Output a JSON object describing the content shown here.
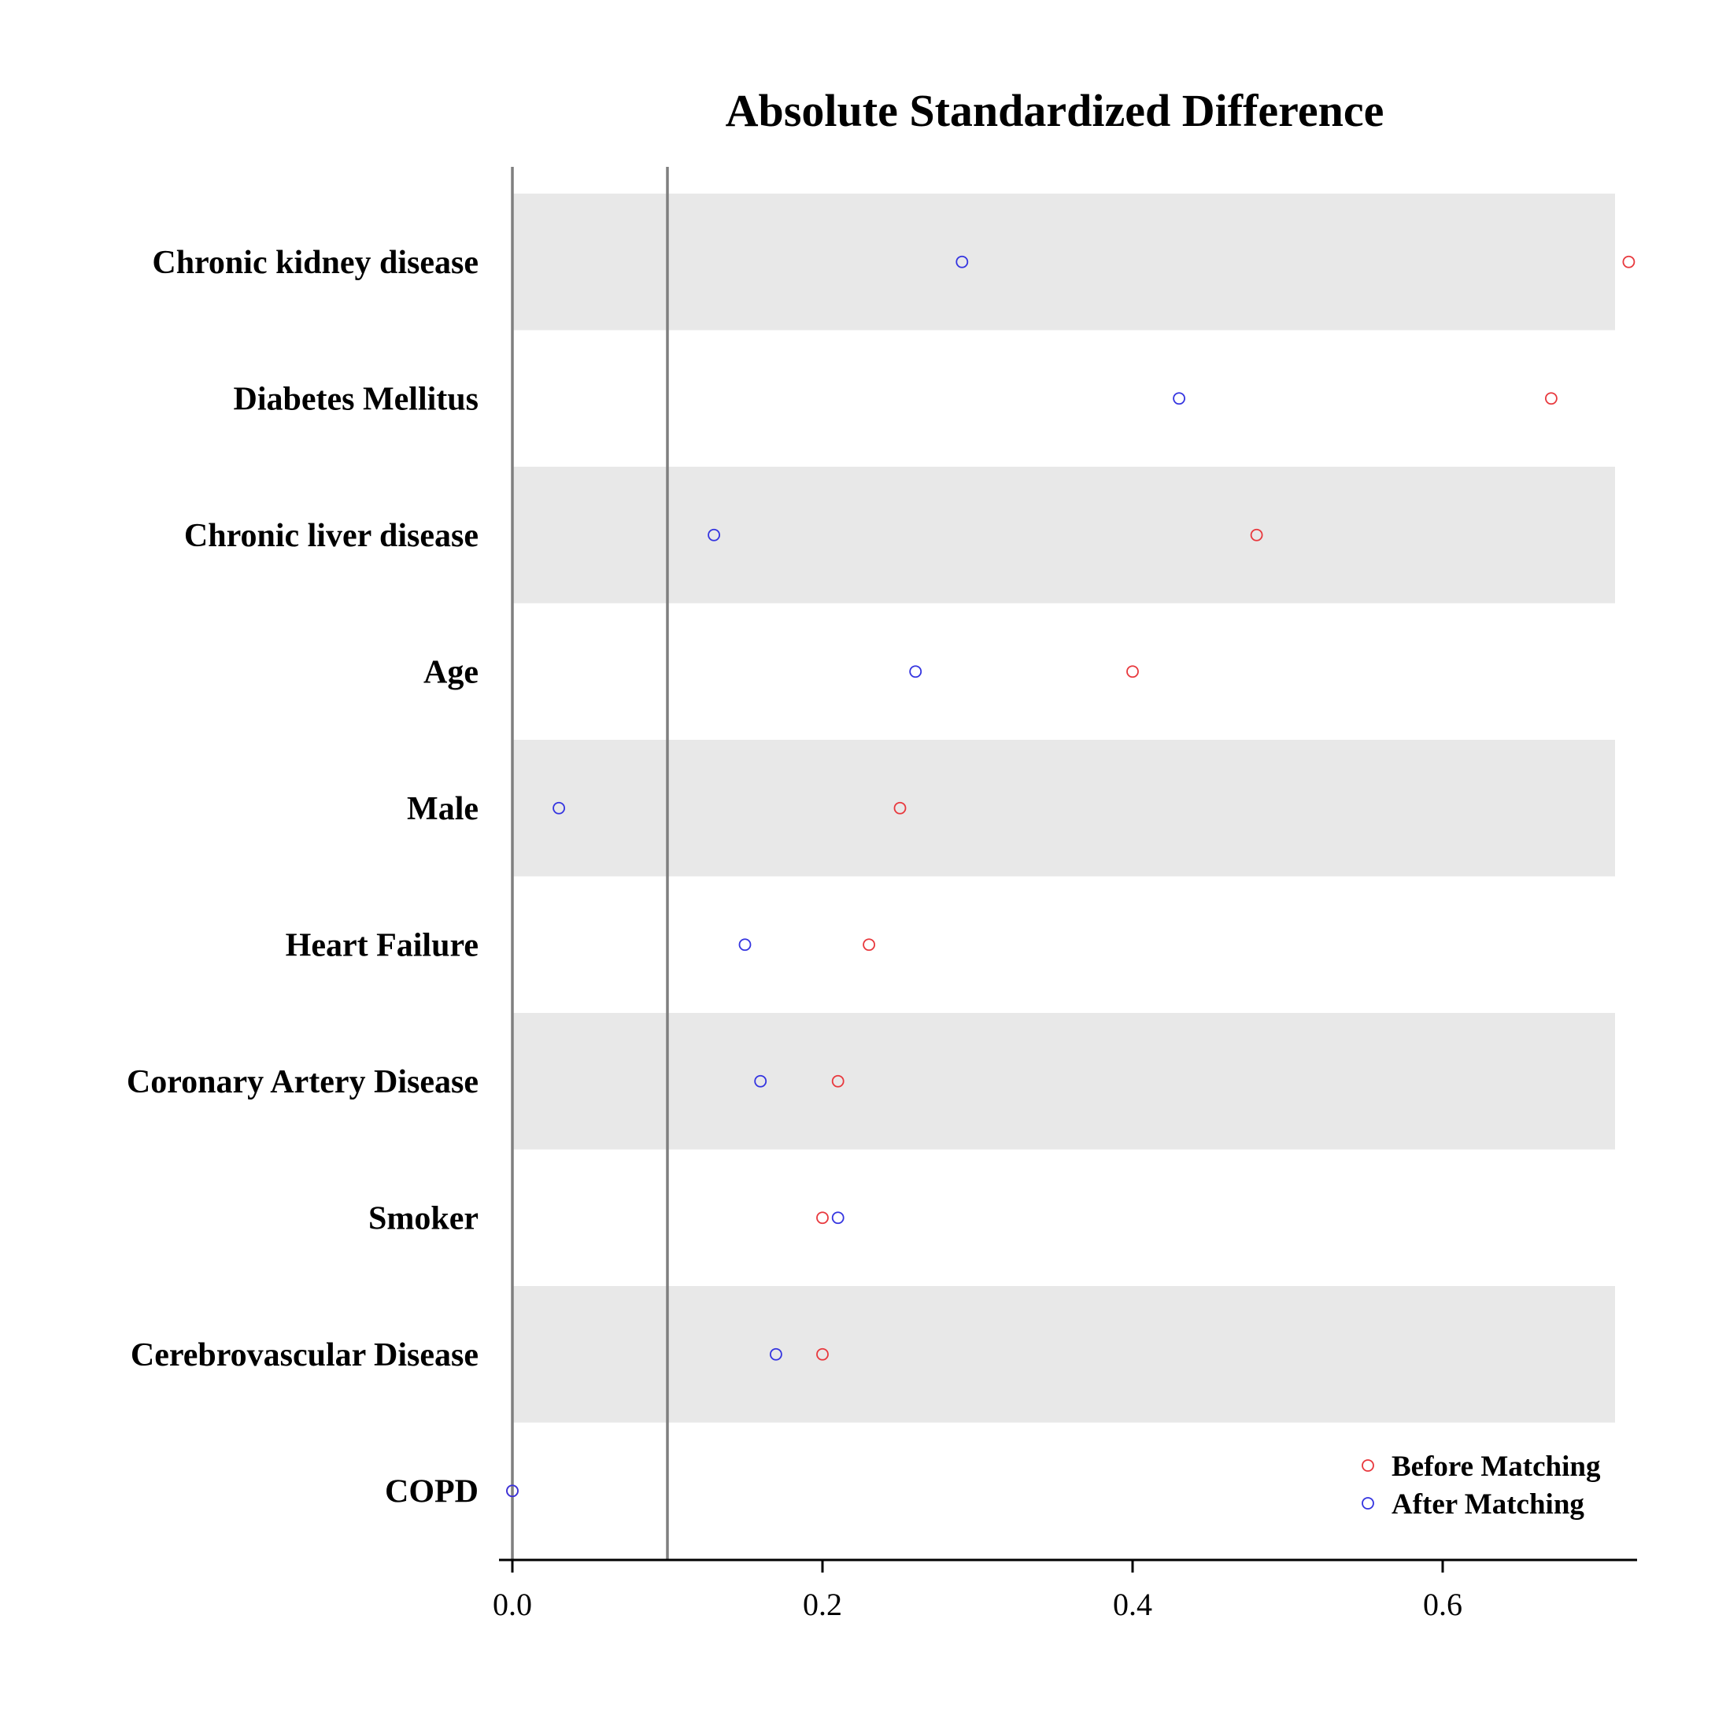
{
  "chart_data": {
    "type": "scatter",
    "title": "Absolute Standardized Difference",
    "xlabel": "",
    "ylabel": "",
    "xlim": [
      0,
      0.72
    ],
    "xticks": [
      0.0,
      0.2,
      0.4,
      0.6
    ],
    "xtick_labels": [
      "0.0",
      "0.2",
      "0.4",
      "0.6"
    ],
    "reference_lines": [
      0.0,
      0.1
    ],
    "categories": [
      "Chronic kidney disease",
      "Diabetes Mellitus",
      "Chronic liver disease",
      "Age",
      "Male",
      "Heart Failure",
      "Coronary Artery Disease",
      "Smoker",
      "Cerebrovascular Disease",
      "COPD"
    ],
    "series": [
      {
        "name": "Before Matching",
        "color": "#e8383d",
        "marker": "open-circle",
        "values": [
          0.72,
          0.67,
          0.48,
          0.4,
          0.25,
          0.23,
          0.21,
          0.2,
          0.2,
          0.0
        ]
      },
      {
        "name": "After Matching",
        "color": "#3434e0",
        "marker": "open-circle",
        "values": [
          0.29,
          0.43,
          0.13,
          0.26,
          0.03,
          0.15,
          0.16,
          0.21,
          0.17,
          0.0
        ]
      }
    ],
    "row_shading": "alternate",
    "shade_color": "#e8e8e8",
    "grid": false,
    "legend_position": "bottom-right"
  }
}
